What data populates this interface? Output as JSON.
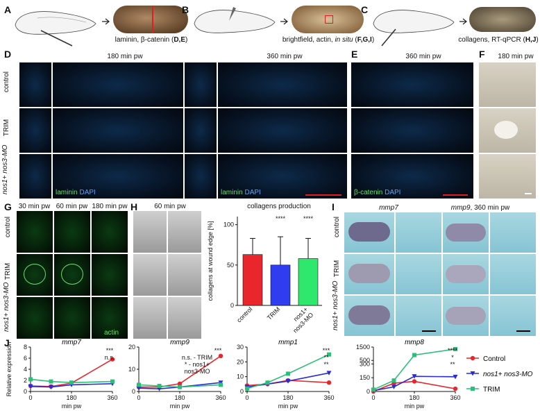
{
  "panels": {
    "A": {
      "letter": "A",
      "caption_pre": "laminin, β-catenin (",
      "caption_bold": "D,E",
      "caption_post": ")"
    },
    "B": {
      "letter": "B",
      "caption_pre": "brightfield, actin, ",
      "caption_italic": "in situ",
      "caption_mid": " (",
      "caption_bold": "F,G,I",
      "caption_post": ")"
    },
    "C": {
      "letter": "C",
      "caption_pre": "collagens, RT-qPCR (",
      "caption_bold": "H,J",
      "caption_post": ")"
    },
    "D": {
      "letter": "D",
      "time1": "180 min pw",
      "time2": "360 min pw",
      "rows": [
        "control",
        "TRIM",
        "nos1+ nos3-MO"
      ],
      "stain_green": "laminin",
      "stain_blue": "DAPI"
    },
    "E": {
      "letter": "E",
      "time": "360 min pw",
      "stain_green": "β-catenin",
      "stain_blue": "DAPI"
    },
    "F": {
      "letter": "F",
      "time": "180 min pw"
    },
    "G": {
      "letter": "G",
      "times": [
        "30 min pw",
        "60 min pw",
        "180 min pw"
      ],
      "rows": [
        "control",
        "TRIM",
        "nos1+ nos3-MO"
      ],
      "stain": "actin"
    },
    "H": {
      "letter": "H",
      "time": "60 min pw"
    },
    "I": {
      "letter": "I",
      "gene1": "mmp7",
      "gene2": "mmp9",
      "gene2_suffix": ", 360 min pw",
      "rows": [
        "control",
        "TRIM",
        "nos1+ nos3-MO"
      ]
    },
    "J": {
      "letter": "J"
    }
  },
  "colors": {
    "control": "#e8262c",
    "nos": "#2b2bd6",
    "trim": "#2cbf78",
    "bar_control": "#e8262c",
    "bar_trim": "#2f3cf0",
    "bar_nos": "#2ee86e"
  },
  "legend": [
    {
      "label": "Control",
      "series": "control"
    },
    {
      "label": "nos1+ nos3-MO",
      "series": "nos"
    },
    {
      "label": "TRIM",
      "series": "trim"
    }
  ],
  "chart_data": [
    {
      "type": "bar",
      "title": "collagens production",
      "ylabel": "collagens at wound edge [%]",
      "categories": [
        "control",
        "TRIM",
        "nos1+ nos3-MO"
      ],
      "values": [
        63,
        50,
        58
      ],
      "errors": [
        20,
        35,
        25
      ],
      "significance": [
        "",
        "****",
        "****"
      ],
      "yticks": [
        0,
        50,
        100
      ],
      "ylim": [
        0,
        110
      ]
    },
    {
      "type": "line",
      "title": "mmp7",
      "ylabel": "Relative expression",
      "xlabel": "min pw",
      "x": [
        0,
        90,
        180,
        360
      ],
      "xticks": [
        0,
        180,
        360
      ],
      "yticks": [
        0,
        2,
        4,
        6,
        8
      ],
      "ylim": [
        0,
        8
      ],
      "series": [
        {
          "name": "Control",
          "key": "control",
          "values": [
            1.0,
            0.9,
            1.5,
            5.8
          ]
        },
        {
          "name": "nos1+ nos3-MO",
          "key": "nos",
          "values": [
            0.9,
            0.8,
            1.2,
            1.4
          ]
        },
        {
          "name": "TRIM",
          "key": "trim",
          "values": [
            2.2,
            1.8,
            1.6,
            1.8
          ]
        }
      ],
      "annotations": [
        "***",
        "n.s."
      ]
    },
    {
      "type": "line",
      "title": "mmp9",
      "xlabel": "min pw",
      "x": [
        0,
        90,
        180,
        360
      ],
      "xticks": [
        0,
        180,
        360
      ],
      "yticks": [
        0,
        10,
        20
      ],
      "ylim": [
        0,
        20
      ],
      "series": [
        {
          "name": "Control",
          "key": "control",
          "values": [
            2.0,
            2.0,
            3.5,
            16.0
          ]
        },
        {
          "name": "nos1+ nos3-MO",
          "key": "nos",
          "values": [
            1.5,
            1.2,
            2.0,
            4.0
          ]
        },
        {
          "name": "TRIM",
          "key": "trim",
          "values": [
            3.0,
            2.5,
            2.0,
            3.0
          ]
        }
      ],
      "annotations": [
        "***",
        "n.s. - TRIM",
        "* - nos1+",
        "nos3-MO"
      ]
    },
    {
      "type": "line",
      "title": "mmp1",
      "xlabel": "min pw",
      "x": [
        0,
        90,
        180,
        360
      ],
      "xticks": [
        0,
        180,
        360
      ],
      "yticks": [
        0,
        10,
        20,
        30
      ],
      "ylim": [
        0,
        30
      ],
      "series": [
        {
          "name": "Control",
          "key": "control",
          "values": [
            4.0,
            5.0,
            7.5,
            6.0
          ]
        },
        {
          "name": "nos1+ nos3-MO",
          "key": "nos",
          "values": [
            3.0,
            5.0,
            7.0,
            12.5
          ]
        },
        {
          "name": "TRIM",
          "key": "trim",
          "values": [
            2.0,
            6.0,
            12.0,
            25.0
          ]
        }
      ],
      "annotations": [
        "***",
        "**",
        "**"
      ]
    },
    {
      "type": "line",
      "title": "mmp8",
      "xlabel": "min pw",
      "x": [
        0,
        90,
        180,
        360
      ],
      "xticks": [
        0,
        180,
        360
      ],
      "yticks": [
        0,
        150,
        300,
        500,
        1500
      ],
      "ylim": [
        0,
        1500
      ],
      "broken_axis": true,
      "series": [
        {
          "name": "Control",
          "key": "control",
          "values": [
            0,
            90,
            110,
            30
          ]
        },
        {
          "name": "nos1+ nos3-MO",
          "key": "nos",
          "values": [
            10,
            50,
            165,
            160
          ]
        },
        {
          "name": "TRIM",
          "key": "trim",
          "values": [
            20,
            120,
            900,
            1350
          ]
        }
      ],
      "annotations": [
        "****",
        "*",
        "**"
      ]
    }
  ]
}
